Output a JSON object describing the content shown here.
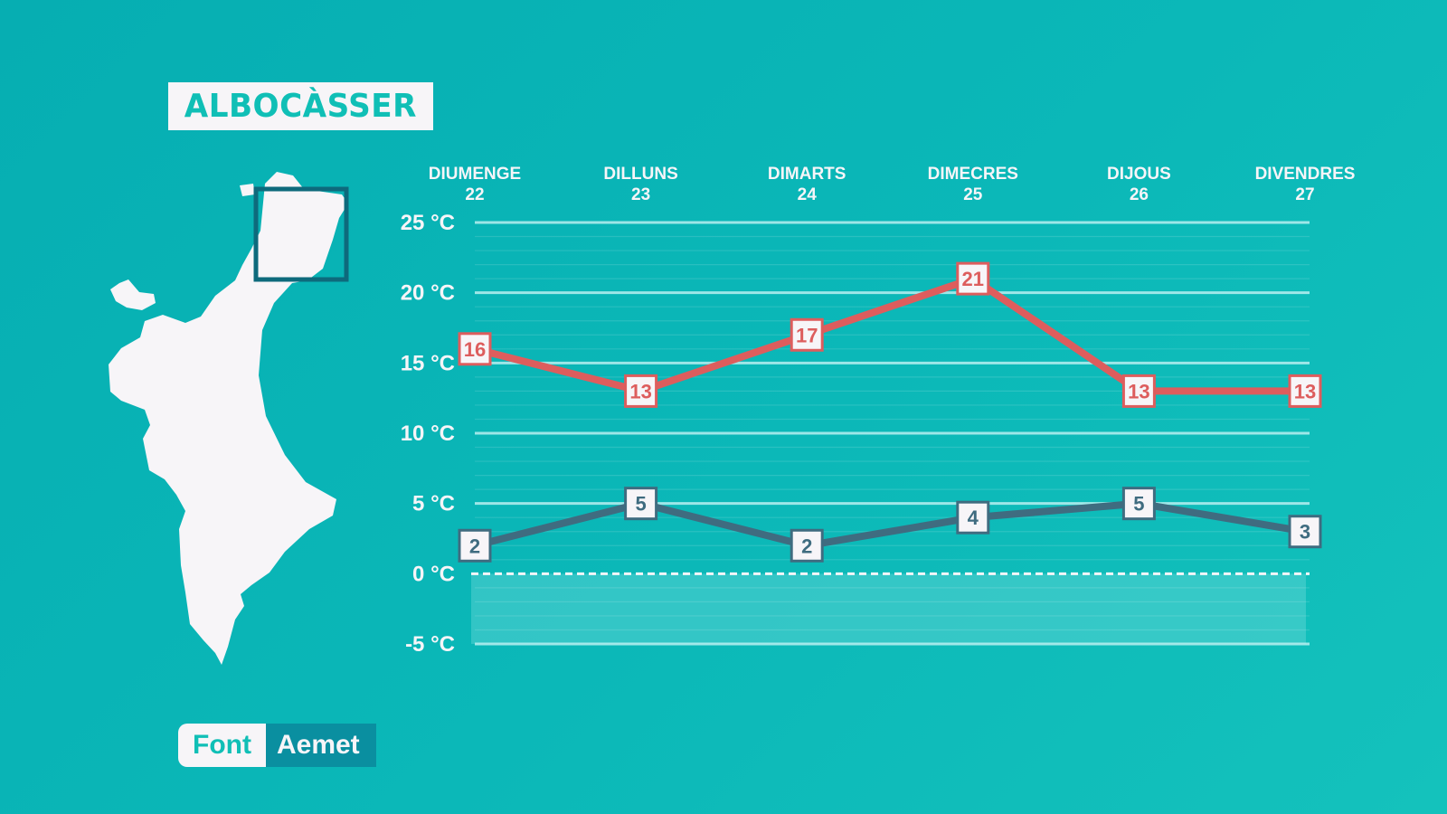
{
  "title": "ALBOCÀSSER",
  "source": {
    "label": "Font",
    "value": "Aemet"
  },
  "colors": {
    "max": "#dd5d5d",
    "min": "#3f6c80",
    "panel": "#f7f5f8"
  },
  "icons": {
    "map": "valencian-community-map-icon"
  },
  "chart_data": {
    "type": "line",
    "categories": [
      {
        "day": "DIUMENGE",
        "date": "22"
      },
      {
        "day": "DILLUNS",
        "date": "23"
      },
      {
        "day": "DIMARTS",
        "date": "24"
      },
      {
        "day": "DIMECRES",
        "date": "25"
      },
      {
        "day": "DIJOUS",
        "date": "26"
      },
      {
        "day": "DIVENDRES",
        "date": "27"
      }
    ],
    "series": [
      {
        "values": [
          16,
          13,
          17,
          21,
          13,
          13
        ]
      },
      {
        "values": [
          2,
          5,
          2,
          4,
          5,
          3
        ]
      }
    ],
    "yticks": [
      "25 °C",
      "20 °C",
      "15 °C",
      "10 °C",
      "5 °C",
      "0 °C",
      "-5 °C"
    ],
    "ytick_values": [
      25,
      20,
      15,
      10,
      5,
      0,
      -5
    ],
    "ylim": [
      -5,
      25
    ],
    "grid": true,
    "legend": "none"
  }
}
